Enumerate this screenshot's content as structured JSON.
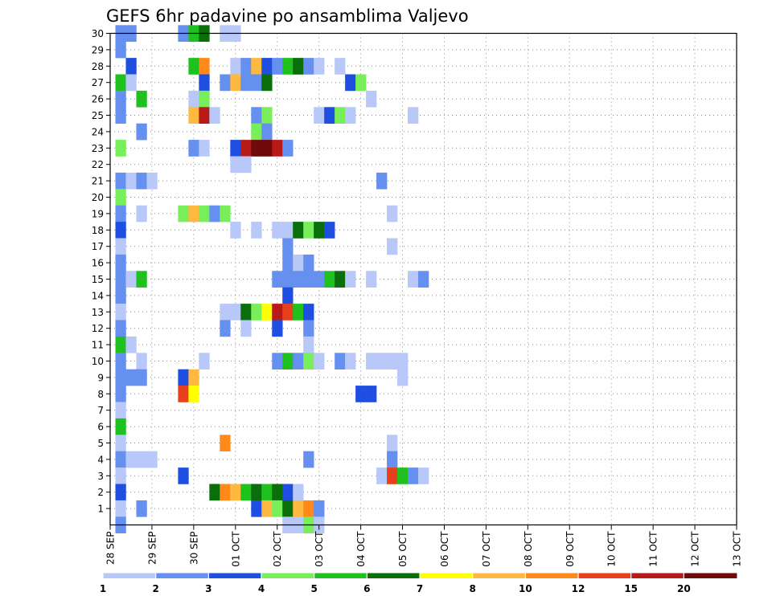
{
  "chart_data": {
    "type": "heatmap",
    "title": "GEFS 6hr padavine po ansamblima Valjevo",
    "xlabel": "",
    "ylabel": "",
    "x_tick_labels": [
      "28 SEP",
      "29 SEP",
      "30 SEP",
      "01 OCT",
      "02 OCT",
      "03 OCT",
      "04 OCT",
      "05 OCT",
      "06 OCT",
      "07 OCT",
      "08 OCT",
      "09 OCT",
      "10 OCT",
      "11 OCT",
      "12 OCT",
      "13 OCT"
    ],
    "x_range": [
      "28 SEP 00Z",
      "13 OCT 00Z"
    ],
    "time_step_hours": 6,
    "y_tick_labels": [
      "1",
      "2",
      "3",
      "4",
      "5",
      "6",
      "7",
      "8",
      "9",
      "10",
      "11",
      "12",
      "13",
      "14",
      "15",
      "16",
      "17",
      "18",
      "19",
      "20",
      "21",
      "22",
      "23",
      "24",
      "25",
      "26",
      "27",
      "28",
      "29",
      "30"
    ],
    "y_range": [
      0,
      30
    ],
    "grid": "dotted",
    "colorbar": {
      "position": "bottom",
      "labels": [
        "1",
        "2",
        "3",
        "4",
        "5",
        "6",
        "7",
        "8",
        "10",
        "12",
        "15",
        "20"
      ],
      "colors": [
        "#b8c8f8",
        "#6690f0",
        "#1f4fe0",
        "#78ee5a",
        "#1fc11f",
        "#0a6e0a",
        "#ffff00",
        "#ffb840",
        "#ff8a1a",
        "#e8401a",
        "#b81a1a",
        "#6e0a0a"
      ]
    },
    "cells": [
      [
        30,
        28.25,
        2
      ],
      [
        30,
        28.5,
        2
      ],
      [
        30,
        29.75,
        2
      ],
      [
        30,
        30.0,
        5
      ],
      [
        30,
        30.25,
        6
      ],
      [
        30,
        30.75,
        1
      ],
      [
        30,
        31.0,
        1
      ],
      [
        29,
        28.25,
        2
      ],
      [
        28,
        28.5,
        3
      ],
      [
        28,
        30.0,
        5
      ],
      [
        28,
        30.25,
        9
      ],
      [
        28,
        31.0,
        1
      ],
      [
        28,
        31.25,
        2
      ],
      [
        28,
        31.5,
        8
      ],
      [
        28,
        31.75,
        3
      ],
      [
        28,
        32.0,
        2
      ],
      [
        28,
        32.25,
        5
      ],
      [
        28,
        32.5,
        6
      ],
      [
        28,
        32.75,
        2
      ],
      [
        28,
        33.0,
        1
      ],
      [
        28,
        33.5,
        1
      ],
      [
        27,
        28.25,
        5
      ],
      [
        27,
        28.5,
        1
      ],
      [
        27,
        30.25,
        3
      ],
      [
        27,
        30.75,
        2
      ],
      [
        27,
        31.0,
        8
      ],
      [
        27,
        31.25,
        2
      ],
      [
        27,
        31.5,
        2
      ],
      [
        27,
        31.75,
        6
      ],
      [
        27,
        33.75,
        3
      ],
      [
        27,
        34.0,
        4
      ],
      [
        26,
        28.25,
        2
      ],
      [
        26,
        28.75,
        5
      ],
      [
        26,
        30.0,
        1
      ],
      [
        26,
        30.25,
        4
      ],
      [
        26,
        34.25,
        1
      ],
      [
        25,
        28.25,
        2
      ],
      [
        25,
        30.0,
        8
      ],
      [
        25,
        30.25,
        11
      ],
      [
        25,
        30.5,
        1
      ],
      [
        25,
        31.5,
        2
      ],
      [
        25,
        31.75,
        4
      ],
      [
        25,
        33.0,
        1
      ],
      [
        25,
        33.25,
        3
      ],
      [
        25,
        33.5,
        4
      ],
      [
        25,
        33.75,
        1
      ],
      [
        25,
        35.25,
        1
      ],
      [
        24,
        28.75,
        2
      ],
      [
        24,
        31.5,
        4
      ],
      [
        24,
        31.75,
        2
      ],
      [
        23,
        28.25,
        4
      ],
      [
        23,
        30.0,
        2
      ],
      [
        23,
        30.25,
        1
      ],
      [
        23,
        31.0,
        3
      ],
      [
        23,
        31.25,
        11
      ],
      [
        23,
        31.5,
        12
      ],
      [
        23,
        31.75,
        12
      ],
      [
        23,
        32.0,
        11
      ],
      [
        23,
        32.25,
        2
      ],
      [
        22,
        31.0,
        1
      ],
      [
        22,
        31.25,
        1
      ],
      [
        21,
        28.25,
        2
      ],
      [
        21,
        28.5,
        1
      ],
      [
        21,
        28.75,
        2
      ],
      [
        21,
        29.0,
        1
      ],
      [
        21,
        34.5,
        2
      ],
      [
        20,
        28.25,
        4
      ],
      [
        19,
        28.25,
        2
      ],
      [
        19,
        28.75,
        1
      ],
      [
        19,
        29.75,
        4
      ],
      [
        19,
        30.0,
        8
      ],
      [
        19,
        30.25,
        4
      ],
      [
        19,
        30.5,
        2
      ],
      [
        19,
        30.75,
        4
      ],
      [
        19,
        34.75,
        1
      ],
      [
        18,
        28.25,
        3
      ],
      [
        18,
        31.0,
        1
      ],
      [
        18,
        31.5,
        1
      ],
      [
        18,
        32.0,
        1
      ],
      [
        18,
        32.25,
        1
      ],
      [
        18,
        32.5,
        6
      ],
      [
        18,
        32.75,
        4
      ],
      [
        18,
        33.0,
        6
      ],
      [
        18,
        33.25,
        3
      ],
      [
        17,
        28.25,
        1
      ],
      [
        17,
        32.25,
        2
      ],
      [
        17,
        34.75,
        1
      ],
      [
        16,
        28.25,
        2
      ],
      [
        16,
        32.25,
        2
      ],
      [
        16,
        32.5,
        1
      ],
      [
        16,
        32.75,
        2
      ],
      [
        15,
        28.25,
        2
      ],
      [
        15,
        28.5,
        1
      ],
      [
        15,
        28.75,
        5
      ],
      [
        15,
        32.0,
        2
      ],
      [
        15,
        32.25,
        2
      ],
      [
        15,
        32.5,
        2
      ],
      [
        15,
        32.75,
        2
      ],
      [
        15,
        33.0,
        2
      ],
      [
        15,
        33.25,
        5
      ],
      [
        15,
        33.5,
        6
      ],
      [
        15,
        33.75,
        1
      ],
      [
        15,
        34.25,
        1
      ],
      [
        15,
        35.25,
        1
      ],
      [
        15,
        35.5,
        2
      ],
      [
        14,
        28.25,
        2
      ],
      [
        14,
        32.25,
        3
      ],
      [
        13,
        28.25,
        1
      ],
      [
        13,
        30.75,
        1
      ],
      [
        13,
        31.0,
        1
      ],
      [
        13,
        31.25,
        6
      ],
      [
        13,
        31.5,
        4
      ],
      [
        13,
        31.75,
        7
      ],
      [
        13,
        32.0,
        11
      ],
      [
        13,
        32.25,
        10
      ],
      [
        13,
        32.5,
        5
      ],
      [
        13,
        32.75,
        3
      ],
      [
        12,
        28.25,
        2
      ],
      [
        12,
        30.75,
        2
      ],
      [
        12,
        31.25,
        1
      ],
      [
        12,
        32.0,
        3
      ],
      [
        12,
        32.75,
        2
      ],
      [
        11,
        28.25,
        5
      ],
      [
        11,
        28.5,
        1
      ],
      [
        11,
        32.75,
        1
      ],
      [
        10,
        28.25,
        2
      ],
      [
        10,
        28.75,
        1
      ],
      [
        10,
        30.25,
        1
      ],
      [
        10,
        32.0,
        2
      ],
      [
        10,
        32.25,
        5
      ],
      [
        10,
        32.5,
        2
      ],
      [
        10,
        32.75,
        4
      ],
      [
        10,
        33.0,
        1
      ],
      [
        10,
        33.5,
        2
      ],
      [
        10,
        33.75,
        1
      ],
      [
        10,
        34.25,
        1
      ],
      [
        10,
        34.5,
        1
      ],
      [
        10,
        34.75,
        1
      ],
      [
        10,
        35.0,
        1
      ],
      [
        9,
        28.25,
        2
      ],
      [
        9,
        28.5,
        2
      ],
      [
        9,
        28.75,
        2
      ],
      [
        9,
        29.75,
        3
      ],
      [
        9,
        30.0,
        8
      ],
      [
        9,
        35.0,
        1
      ],
      [
        8,
        28.25,
        2
      ],
      [
        8,
        29.75,
        10
      ],
      [
        8,
        30.0,
        7
      ],
      [
        8,
        34.0,
        3
      ],
      [
        8,
        34.25,
        3
      ],
      [
        7,
        28.25,
        1
      ],
      [
        6,
        28.25,
        5
      ],
      [
        5,
        28.25,
        1
      ],
      [
        5,
        30.75,
        9
      ],
      [
        5,
        34.75,
        1
      ],
      [
        4,
        28.25,
        2
      ],
      [
        4,
        28.5,
        1
      ],
      [
        4,
        28.75,
        1
      ],
      [
        4,
        29.0,
        1
      ],
      [
        4,
        32.75,
        2
      ],
      [
        4,
        34.75,
        2
      ],
      [
        3,
        28.25,
        1
      ],
      [
        3,
        29.75,
        3
      ],
      [
        3,
        34.5,
        1
      ],
      [
        3,
        34.75,
        10
      ],
      [
        3,
        35.0,
        5
      ],
      [
        3,
        35.25,
        2
      ],
      [
        3,
        35.5,
        1
      ],
      [
        2,
        28.25,
        3
      ],
      [
        2,
        30.5,
        6
      ],
      [
        2,
        30.75,
        9
      ],
      [
        2,
        31.0,
        8
      ],
      [
        2,
        31.25,
        5
      ],
      [
        2,
        31.5,
        6
      ],
      [
        2,
        31.75,
        5
      ],
      [
        2,
        32.0,
        6
      ],
      [
        2,
        32.25,
        3
      ],
      [
        2,
        32.5,
        1
      ],
      [
        1,
        28.25,
        1
      ],
      [
        1,
        28.75,
        2
      ],
      [
        1,
        31.5,
        3
      ],
      [
        1,
        31.75,
        8
      ],
      [
        1,
        32.0,
        4
      ],
      [
        1,
        32.25,
        6
      ],
      [
        1,
        32.5,
        8
      ],
      [
        1,
        32.75,
        9
      ],
      [
        1,
        33.0,
        2
      ],
      [
        0,
        28.25,
        2
      ],
      [
        0,
        32.25,
        1
      ],
      [
        0,
        32.5,
        1
      ],
      [
        0,
        32.75,
        4
      ],
      [
        0,
        33.0,
        1
      ]
    ]
  }
}
